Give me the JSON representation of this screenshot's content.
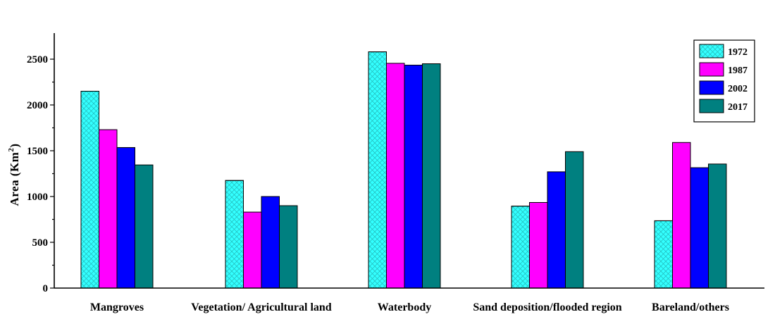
{
  "chart_data": {
    "type": "bar",
    "title": "",
    "xlabel": "",
    "ylabel": "Area (Km²)",
    "ylabel_main": "Area (Km",
    "ylabel_sup": "2",
    "ylabel_close": ")",
    "ylim": [
      0,
      2750
    ],
    "yticks": [
      0,
      500,
      1000,
      1500,
      2000,
      2500
    ],
    "grid": false,
    "legend_position": "top-right",
    "categories": [
      "Mangroves",
      "Vegetation/ Agricultural land",
      "Waterbody",
      "Sand deposition/flooded region",
      "Bareland/others"
    ],
    "series": [
      {
        "name": "1972",
        "color": "#33FFFF",
        "values": [
          2150,
          1175,
          2580,
          895,
          735
        ]
      },
      {
        "name": "1987",
        "color": "#FF00FF",
        "values": [
          1730,
          830,
          2455,
          935,
          1590
        ]
      },
      {
        "name": "2002",
        "color": "#0000FF",
        "values": [
          1535,
          1000,
          2435,
          1270,
          1315
        ]
      },
      {
        "name": "2017",
        "color": "#008080",
        "values": [
          1345,
          900,
          2450,
          1490,
          1355
        ]
      }
    ]
  }
}
